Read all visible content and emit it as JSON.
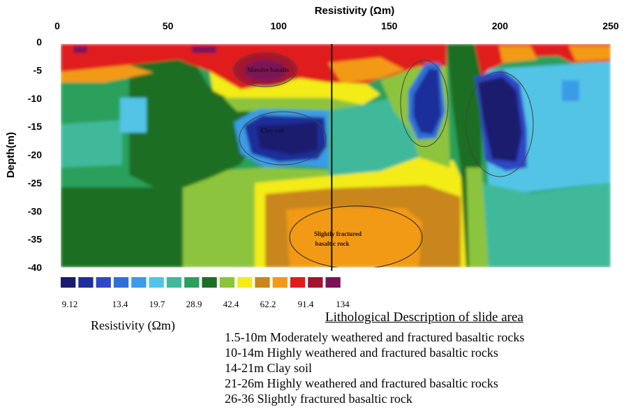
{
  "chart_data": {
    "type": "heatmap",
    "xlabel": "Resistivity (Ωm)",
    "ylabel": "Depth(m)",
    "xlim": [
      0,
      250
    ],
    "ylim": [
      -40,
      0
    ],
    "x_ticks": [
      "0",
      "50",
      "100",
      "150",
      "200",
      "250"
    ],
    "y_ticks": [
      "0",
      "-5",
      "-10",
      "-15",
      "-20",
      "-25",
      "-30",
      "-35",
      "-40"
    ],
    "x_axis_position": "top",
    "grid": false,
    "profile_line_x": 124,
    "colorbar": {
      "title": "Resistivity (Ωm)",
      "labels": [
        "9.12",
        "13.4",
        "19.7",
        "28.9",
        "42.4",
        "62.2",
        "91.4",
        "134"
      ],
      "colors": [
        "#1a1a6e",
        "#1f2e9a",
        "#2f47c6",
        "#2f6fd8",
        "#3a9be6",
        "#53c4e6",
        "#3fb99b",
        "#2aa05c",
        "#1b6e23",
        "#8cc43c",
        "#f3ec17",
        "#c9861a",
        "#f29a16",
        "#e11b1b",
        "#a3122e",
        "#7a1356"
      ]
    },
    "annotations": [
      "Massive basalts",
      "Clay soil",
      "Slightly fractured",
      "basaltic rock"
    ]
  },
  "legend": {
    "title": "Lithological Description of slide area",
    "items": [
      "1.5-10m Moderately weathered and fractured basaltic rocks",
      "10-14m Highly weathered and fractured basaltic rocks",
      "14-21m Clay soil",
      "21-26m Highly weathered and fractured basaltic rocks",
      "26-36 Slightly fractured basaltic rock"
    ]
  }
}
